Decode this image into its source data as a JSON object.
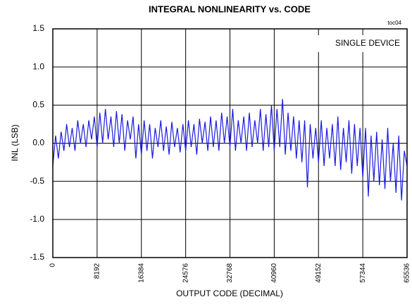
{
  "chart_data": {
    "type": "line",
    "title": "INTEGRAL NONLINEARITY vs. CODE",
    "xlabel": "OUTPUT CODE (DECIMAL)",
    "ylabel": "INL (LSB)",
    "annotations": [
      "toc04",
      "SINGLE DEVICE"
    ],
    "color": "#1a1adf",
    "grid": true,
    "xlim": [
      0,
      65536
    ],
    "xticks": [
      0,
      8192,
      16384,
      24576,
      32768,
      40960,
      49152,
      57344,
      65536
    ],
    "ylim": [
      -1.5,
      1.5
    ],
    "yticks": [
      1.5,
      {
        "value": 1.0,
        "label": "1.0"
      },
      0.5,
      {
        "value": 0.0,
        "label": "0.0"
      },
      -0.5,
      {
        "value": -1.0,
        "label": "-1.0"
      },
      -1.5
    ],
    "x": [
      0,
      512,
      1024,
      1536,
      2048,
      2560,
      3072,
      3584,
      4096,
      4608,
      5120,
      5632,
      6144,
      6656,
      7168,
      7680,
      8192,
      8704,
      9216,
      9728,
      10240,
      10752,
      11264,
      11776,
      12288,
      12800,
      13312,
      13824,
      14336,
      14848,
      15360,
      15872,
      16384,
      16896,
      17408,
      17920,
      18432,
      18944,
      19456,
      19968,
      20480,
      20992,
      21504,
      22016,
      22528,
      23040,
      23552,
      24064,
      24576,
      25088,
      25600,
      26112,
      26624,
      27136,
      27648,
      28160,
      28672,
      29184,
      29696,
      30208,
      30720,
      31232,
      31744,
      32256,
      32768,
      33280,
      33792,
      34304,
      34816,
      35328,
      35840,
      36352,
      36864,
      37376,
      37888,
      38400,
      38912,
      39424,
      39936,
      40448,
      40960,
      41472,
      41984,
      42496,
      43008,
      43520,
      44032,
      44544,
      45056,
      45568,
      46080,
      46592,
      47104,
      47616,
      48128,
      48640,
      49152,
      49664,
      50176,
      50688,
      51200,
      51712,
      52224,
      52736,
      53248,
      53760,
      54272,
      54784,
      55296,
      55808,
      56320,
      56832,
      57344,
      57856,
      58368,
      58880,
      59392,
      59904,
      60416,
      60928,
      61440,
      61952,
      62464,
      62976,
      63488,
      64000,
      64512,
      65024,
      65536
    ],
    "values": [
      -0.3,
      0.1,
      -0.2,
      0.15,
      -0.1,
      0.25,
      -0.05,
      0.2,
      -0.1,
      0.3,
      0.0,
      0.25,
      -0.05,
      0.3,
      0.05,
      0.35,
      -0.05,
      0.4,
      0.0,
      0.45,
      0.05,
      0.35,
      -0.05,
      0.42,
      0.0,
      0.38,
      -0.1,
      0.3,
      0.05,
      0.35,
      -0.2,
      0.25,
      -0.15,
      0.3,
      -0.1,
      0.25,
      -0.2,
      0.2,
      -0.05,
      0.3,
      -0.1,
      0.22,
      -0.15,
      0.28,
      -0.05,
      0.2,
      -0.12,
      0.25,
      -0.1,
      0.3,
      -0.05,
      0.25,
      -0.15,
      0.32,
      0.0,
      0.28,
      -0.1,
      0.35,
      -0.05,
      0.3,
      -0.1,
      0.4,
      0.0,
      0.35,
      -0.05,
      0.45,
      -0.1,
      0.3,
      0.0,
      0.35,
      -0.1,
      0.4,
      -0.05,
      0.3,
      0.0,
      0.45,
      -0.1,
      0.38,
      -0.05,
      0.5,
      -0.1,
      0.45,
      -0.05,
      0.58,
      -0.15,
      0.4,
      -0.1,
      0.35,
      -0.2,
      0.3,
      -0.25,
      0.3,
      -0.58,
      0.25,
      -0.2,
      0.2,
      -0.25,
      0.3,
      -0.3,
      0.2,
      -0.2,
      0.25,
      -0.3,
      0.35,
      -0.35,
      0.2,
      -0.25,
      0.3,
      -0.4,
      0.25,
      -0.3,
      0.2,
      -0.45,
      0.2,
      -0.7,
      0.1,
      -0.5,
      0.15,
      -0.55,
      0.05,
      -0.6,
      0.2,
      -0.5,
      0.0,
      -0.65,
      0.1,
      -0.75,
      -0.1,
      -0.3
    ]
  }
}
